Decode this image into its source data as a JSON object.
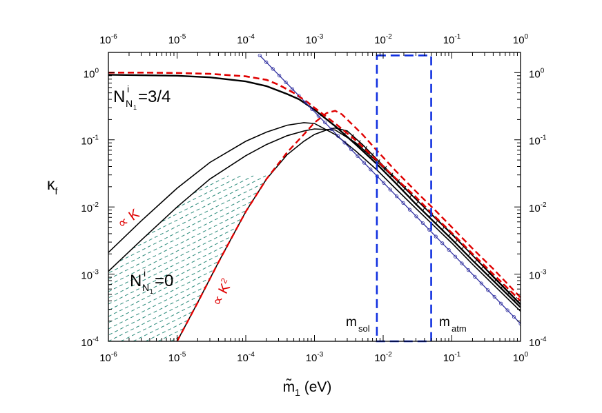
{
  "chart_data": {
    "type": "line",
    "xlabel": "m̃",
    "xlabel_sub": "1",
    "xlabel_unit": "(eV)",
    "ylabel": "κ",
    "ylabel_sub": "f",
    "xscale": "log",
    "yscale": "log",
    "xlim": [
      1e-06,
      1
    ],
    "ylim": [
      0.0001,
      2
    ],
    "x_ticks": [
      {
        "mant": "10",
        "exp": "-6"
      },
      {
        "mant": "10",
        "exp": "-5"
      },
      {
        "mant": "10",
        "exp": "-4"
      },
      {
        "mant": "10",
        "exp": "-3"
      },
      {
        "mant": "10",
        "exp": "-2"
      },
      {
        "mant": "10",
        "exp": "-1"
      },
      {
        "mant": "10",
        "exp": "0"
      }
    ],
    "y_ticks": [
      {
        "mant": "10",
        "exp": "-4"
      },
      {
        "mant": "10",
        "exp": "-3"
      },
      {
        "mant": "10",
        "exp": "-2"
      },
      {
        "mant": "10",
        "exp": "-1"
      },
      {
        "mant": "10",
        "exp": "0"
      }
    ],
    "annotations": {
      "thermal_label": {
        "main": "N",
        "sup": "i",
        "sub": "N",
        "subsub": "1",
        "rest": "=3/4"
      },
      "zero_label": {
        "main": "N",
        "sup": "i",
        "sub": "N",
        "subsub": "1",
        "rest": "=0"
      },
      "prop_k": "∝ K",
      "prop_k2": "∝ K",
      "prop_k2_exp": "2",
      "m_sol": "m",
      "m_sol_sub": "sol",
      "m_atm": "m",
      "m_atm_sub": "atm"
    },
    "band": {
      "x_min": 0.0081,
      "x_max": 0.05,
      "y_min": 0.0001,
      "y_max": 1.8
    },
    "series": [
      {
        "style": "thermal_black",
        "color": "#000000",
        "x": [
          1e-06,
          1e-05,
          3e-05,
          0.0001,
          0.0002,
          0.0004,
          0.0006,
          0.001,
          0.002,
          0.004,
          0.008,
          0.015,
          0.03,
          0.06,
          0.1,
          0.2,
          0.4,
          1
        ],
        "y": [
          0.93,
          0.9,
          0.85,
          0.74,
          0.63,
          0.48,
          0.4,
          0.28,
          0.16,
          0.085,
          0.044,
          0.023,
          0.011,
          0.0055,
          0.0033,
          0.0016,
          0.0008,
          0.00032
        ]
      },
      {
        "style": "thermal_red_dashed",
        "color": "#e00000",
        "x": [
          1e-06,
          3e-06,
          1e-05,
          3e-05,
          0.0001,
          0.0002,
          0.0003,
          0.0005,
          0.0008,
          0.001,
          0.002,
          0.004,
          0.008,
          0.015,
          0.03,
          0.06,
          0.1,
          0.2,
          0.4,
          1
        ],
        "y": [
          1.0,
          1.0,
          0.99,
          0.96,
          0.88,
          0.78,
          0.66,
          0.5,
          0.36,
          0.3,
          0.175,
          0.098,
          0.05,
          0.027,
          0.014,
          0.0068,
          0.0041,
          0.002,
          0.001,
          0.0004
        ]
      },
      {
        "style": "zero_upper",
        "color": "#000000",
        "x": [
          1e-06,
          3e-06,
          1e-05,
          3e-05,
          0.0001,
          0.0002,
          0.0004,
          0.0007,
          0.001,
          0.002,
          0.004,
          0.008,
          0.015,
          0.03,
          0.06,
          0.1,
          0.2,
          0.4,
          1
        ],
        "y": [
          0.0021,
          0.0062,
          0.019,
          0.046,
          0.095,
          0.13,
          0.165,
          0.18,
          0.175,
          0.12,
          0.068,
          0.036,
          0.019,
          0.0095,
          0.0048,
          0.0029,
          0.0014,
          0.0007,
          0.00028
        ]
      },
      {
        "style": "zero_lower",
        "color": "#000000",
        "x": [
          1e-06,
          3e-06,
          1e-05,
          3e-05,
          0.0001,
          0.0002,
          0.0004,
          0.0007,
          0.001,
          0.002,
          0.004,
          0.008,
          0.015,
          0.03,
          0.06,
          0.1,
          0.2,
          0.4,
          1
        ],
        "y": [
          0.0011,
          0.0032,
          0.01,
          0.026,
          0.058,
          0.085,
          0.115,
          0.135,
          0.145,
          0.14,
          0.09,
          0.048,
          0.026,
          0.013,
          0.0066,
          0.004,
          0.0019,
          0.0009,
          0.00035
        ]
      },
      {
        "style": "strong_black",
        "color": "#000000",
        "x": [
          1e-05,
          2e-05,
          4e-05,
          0.0001,
          0.0002,
          0.0004,
          0.0007,
          0.001,
          0.0015,
          0.002,
          0.003,
          0.005,
          0.008,
          0.015,
          0.03,
          0.06,
          0.1,
          0.2,
          0.4,
          1
        ],
        "y": [
          0.0001,
          0.00038,
          0.0015,
          0.0085,
          0.026,
          0.06,
          0.095,
          0.12,
          0.14,
          0.15,
          0.135,
          0.085,
          0.052,
          0.027,
          0.013,
          0.0065,
          0.0039,
          0.0019,
          0.00093,
          0.00036
        ]
      },
      {
        "style": "strong_red_dashed",
        "color": "#e00000",
        "x": [
          1e-05,
          2e-05,
          4e-05,
          0.0001,
          0.0002,
          0.0004,
          0.0007,
          0.001,
          0.0015,
          0.002,
          0.0025,
          0.003,
          0.005,
          0.008,
          0.015,
          0.03,
          0.06,
          0.1,
          0.2,
          0.4,
          1
        ],
        "y": [
          0.0001,
          0.00038,
          0.0015,
          0.0085,
          0.026,
          0.065,
          0.12,
          0.18,
          0.25,
          0.27,
          0.24,
          0.2,
          0.12,
          0.07,
          0.035,
          0.017,
          0.0085,
          0.005,
          0.0024,
          0.0012,
          0.00045
        ]
      },
      {
        "style": "blue_asymptote",
        "color": "#3030a0",
        "x": [
          0.00016,
          1
        ],
        "y": [
          1.8,
          0.000183
        ]
      }
    ]
  }
}
